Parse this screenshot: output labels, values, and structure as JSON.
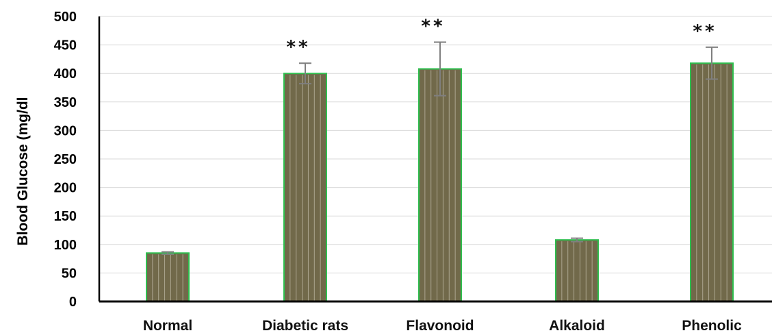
{
  "chart_data": {
    "type": "bar",
    "title": "",
    "xlabel": "",
    "ylabel": "Blood Glucose (mg/dl",
    "ylim": [
      0,
      500
    ],
    "yticks": [
      0,
      50,
      100,
      150,
      200,
      250,
      300,
      350,
      400,
      450,
      500
    ],
    "grid": true,
    "categories": [
      "Normal",
      "Diabetic rats",
      "Flavonoid",
      "Alkaloid",
      "Phenolic"
    ],
    "values": [
      85,
      400,
      408,
      108,
      418
    ],
    "error_bars": [
      2,
      18,
      47,
      3,
      28
    ],
    "significance": [
      "",
      "**",
      "**",
      "",
      "**"
    ],
    "colors": {
      "bar_fill": "#71694a",
      "bar_edge": "#2fbf4f",
      "bar_stripe": "#d4cfbf",
      "error_bar": "#7f7f7f",
      "gridline": "#d9d9d9",
      "axis": "#000000"
    }
  }
}
